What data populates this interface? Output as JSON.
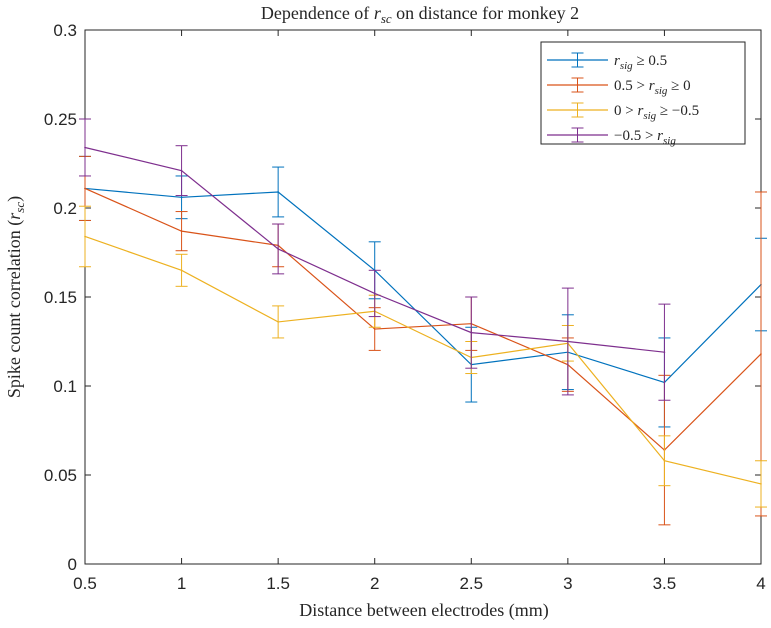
{
  "chart_data": {
    "type": "line",
    "title_prefix": "Dependence of ",
    "title_math": "r",
    "title_math_sub": "sc",
    "title_suffix": " on distance for monkey 2",
    "xlabel": "Distance between electrodes (mm)",
    "ylabel_prefix": "Spike count correlation (",
    "ylabel_math": "r",
    "ylabel_math_sub": "sc",
    "ylabel_suffix": ")",
    "xlim": [
      0.5,
      4
    ],
    "ylim": [
      0,
      0.3
    ],
    "x_ticks": [
      "0.5",
      "1",
      "1.5",
      "2",
      "2.5",
      "3",
      "3.5",
      "4"
    ],
    "y_ticks": [
      "0",
      "0.05",
      "0.1",
      "0.15",
      "0.2",
      "0.25",
      "0.3"
    ],
    "legend_position": "top-right",
    "series": [
      {
        "name": "r_sig ≥ 0.5",
        "legend_math": "r",
        "legend_sub": "sig",
        "legend_rest": " ≥ 0.5",
        "legend_lead": "",
        "color": "#0072BD",
        "x": [
          0.5,
          1,
          1.5,
          2,
          2.5,
          3,
          3.5,
          4
        ],
        "y": [
          0.211,
          0.206,
          0.209,
          0.165,
          0.112,
          0.119,
          0.102,
          0.157
        ],
        "err": [
          0.018,
          0.012,
          0.014,
          0.016,
          0.021,
          0.021,
          0.025,
          0.026
        ]
      },
      {
        "name": "0.5 > r_sig ≥ 0",
        "legend_lead": "0.5 > ",
        "legend_math": "r",
        "legend_sub": "sig",
        "legend_rest": " ≥ 0",
        "color": "#D95319",
        "x": [
          0.5,
          1,
          1.5,
          2,
          2.5,
          3,
          3.5,
          4
        ],
        "y": [
          0.211,
          0.187,
          0.179,
          0.132,
          0.135,
          0.112,
          0.064,
          0.118
        ],
        "err": [
          0.018,
          0.011,
          0.012,
          0.012,
          0.015,
          0.015,
          0.042,
          0.091
        ]
      },
      {
        "name": "0 > r_sig ≥ −0.5",
        "legend_lead": "0 > ",
        "legend_math": "r",
        "legend_sub": "sig",
        "legend_rest": " ≥ −0.5",
        "color": "#EDB120",
        "x": [
          0.5,
          1,
          1.5,
          2,
          2.5,
          3,
          3.5,
          4
        ],
        "y": [
          0.184,
          0.165,
          0.136,
          0.142,
          0.116,
          0.124,
          0.058,
          0.045
        ],
        "err": [
          0.017,
          0.009,
          0.009,
          0.009,
          0.009,
          0.01,
          0.014,
          0.013
        ]
      },
      {
        "name": "−0.5 > r_sig",
        "legend_lead": "−0.5 > ",
        "legend_math": "r",
        "legend_sub": "sig",
        "legend_rest": "",
        "color": "#7E2F8E",
        "x": [
          0.5,
          1,
          1.5,
          2,
          2.5,
          3,
          3.5
        ],
        "y": [
          0.234,
          0.221,
          0.177,
          0.152,
          0.13,
          0.125,
          0.119
        ],
        "err": [
          0.016,
          0.014,
          0.014,
          0.013,
          0.02,
          0.03,
          0.027
        ]
      }
    ]
  }
}
